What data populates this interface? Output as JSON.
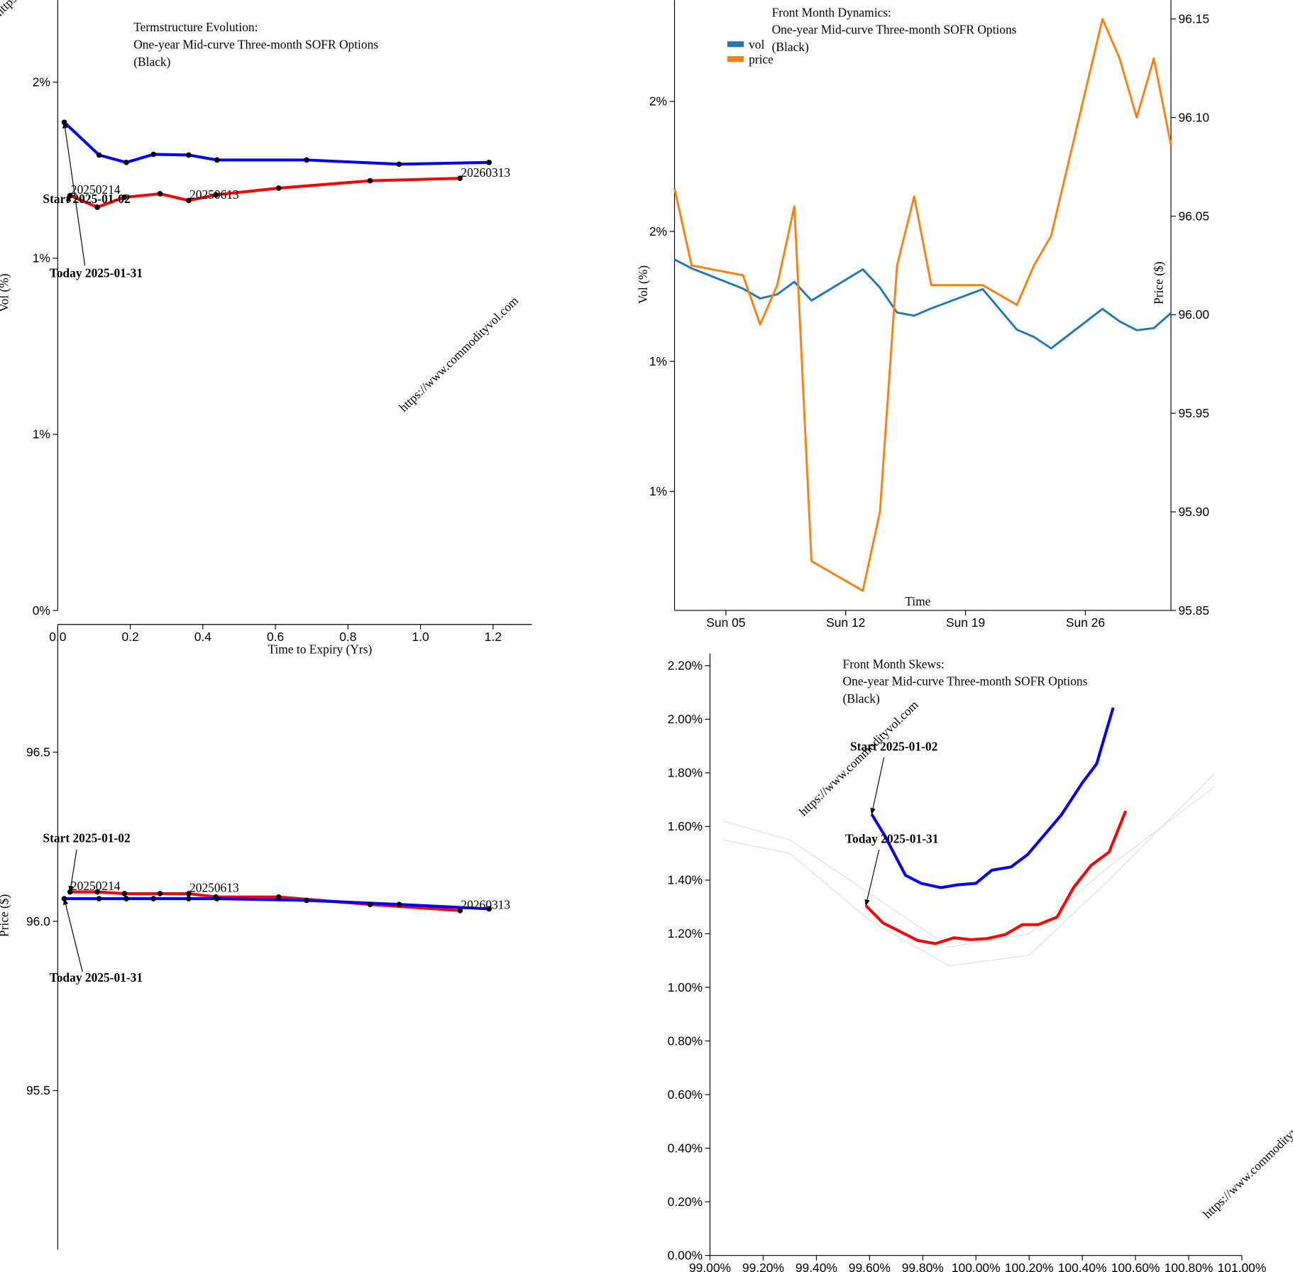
{
  "watermark": "https://www.commodityvol.com",
  "chart_data": [
    {
      "type": "line",
      "title": [
        "Termstructure Evolution:",
        "One-year Mid-curve Three-month SOFR Options",
        "(Black)"
      ],
      "x_label": "Time to Expiry (Yrs)",
      "y_label": "Vol (%)",
      "xlim": [
        0,
        1.307
      ],
      "ylim": [
        0,
        1.733
      ],
      "xticks": [
        {
          "value": 0,
          "label": "0.0"
        },
        0.2,
        0.4,
        0.6,
        0.8,
        {
          "value": 1,
          "label": "1.0"
        },
        1.2
      ],
      "yticks": [
        {
          "value": 0,
          "label": "0%"
        },
        {
          "value": 0.5,
          "label": "1%"
        },
        {
          "value": 1,
          "label": "1%"
        },
        {
          "value": 1.5,
          "label": "2%"
        }
      ],
      "markers": true,
      "annotations": [
        "Start 2025-01-02",
        "Today 2025-01-31"
      ],
      "series": [
        {
          "color": "#ff0000",
          "x": [
            0.034,
            0.109,
            0.184,
            0.282,
            0.361,
            0.436,
            0.609,
            0.861,
            1.109
          ],
          "values": [
            1.178,
            1.145,
            1.173,
            1.183,
            1.164,
            1.18,
            1.199,
            1.22,
            1.227
          ],
          "point_labels": [
            "20250214",
            null,
            null,
            null,
            "20250613",
            null,
            null,
            null,
            "20260313"
          ]
        },
        {
          "color": "#0000ff",
          "x": [
            0.018,
            0.114,
            0.189,
            0.264,
            0.361,
            0.439,
            0.686,
            0.941,
            1.189
          ],
          "values": [
            1.386,
            1.293,
            1.272,
            1.295,
            1.293,
            1.279,
            1.279,
            1.267,
            1.272
          ]
        }
      ]
    },
    {
      "type": "line",
      "y_label": "Price ($)",
      "xlim": [
        0,
        1.307
      ],
      "ylim": [
        95.03,
        96.87
      ],
      "yticks": [
        95.5,
        {
          "value": 96,
          "label": "96.0"
        },
        96.5
      ],
      "markers": true,
      "annotations": [
        "Start 2025-01-02",
        "Today 2025-01-31"
      ],
      "series": [
        {
          "color": "#ff0000",
          "x": [
            0.034,
            0.109,
            0.184,
            0.282,
            0.361,
            0.436,
            0.609,
            0.861,
            1.109
          ],
          "values": [
            96.087,
            96.087,
            96.082,
            96.082,
            96.082,
            96.072,
            96.072,
            96.05,
            96.032
          ],
          "point_labels": [
            "20250214",
            null,
            null,
            null,
            "20250613",
            null,
            null,
            null,
            "20260313"
          ]
        },
        {
          "color": "#0000ff",
          "x": [
            0.018,
            0.114,
            0.189,
            0.264,
            0.361,
            0.439,
            0.686,
            0.941,
            1.189
          ],
          "values": [
            96.067,
            96.067,
            96.067,
            96.067,
            96.067,
            96.067,
            96.062,
            96.05,
            96.037
          ]
        }
      ]
    },
    {
      "type": "line",
      "title": [
        "Front Month Dynamics:",
        "One-year Mid-curve Three-month SOFR Options",
        "(Black)"
      ],
      "x_label": "Time",
      "y_label": "Vol (%)",
      "y2_label": "Price ($)",
      "xlim": [
        2,
        31
      ],
      "ylim": [
        0.771,
        1.945
      ],
      "y2lim": [
        95.85,
        96.1596
      ],
      "xticks": [
        {
          "value": 5,
          "label": "Sun 05"
        },
        {
          "value": 12,
          "label": "Sun 12"
        },
        {
          "value": 19,
          "label": "Sun 19"
        },
        {
          "value": 26,
          "label": "Sun 26"
        }
      ],
      "yticks": [
        {
          "value": 1,
          "label": "1%"
        },
        {
          "value": 1.25,
          "label": "1%"
        },
        {
          "value": 1.5,
          "label": "2%"
        },
        {
          "value": 1.75,
          "label": "2%"
        }
      ],
      "y2ticks": [
        95.85,
        {
          "value": 95.9,
          "label": "95.90"
        },
        95.95,
        {
          "value": 96,
          "label": "96.00"
        },
        96.05,
        {
          "value": 96.1,
          "label": "96.10"
        },
        96.15
      ],
      "legend": "top-left",
      "series": [
        {
          "name": "vol",
          "color": "#1f77b4",
          "x": [
            2,
            3,
            6,
            7,
            8,
            9,
            10,
            13,
            14,
            15,
            16,
            17,
            20,
            22,
            23,
            24,
            27,
            28,
            29,
            30,
            31
          ],
          "values": [
            1.446,
            1.429,
            1.39,
            1.371,
            1.379,
            1.403,
            1.367,
            1.427,
            1.392,
            1.344,
            1.338,
            1.352,
            1.389,
            1.311,
            1.297,
            1.275,
            1.351,
            1.327,
            1.31,
            1.314,
            1.343
          ]
        },
        {
          "name": "price",
          "color": "#ff7f0e",
          "axis": "y2",
          "x": [
            2,
            3,
            6,
            7,
            8,
            9,
            10,
            13,
            14,
            15,
            16,
            17,
            20,
            22,
            23,
            24,
            27,
            28,
            29,
            30,
            31
          ],
          "values": [
            96.064,
            96.025,
            96.02,
            95.995,
            96.015,
            96.055,
            95.875,
            95.86,
            95.9,
            96.025,
            96.06,
            96.015,
            96.015,
            96.005,
            96.025,
            96.04,
            96.15,
            96.13,
            96.1,
            96.13,
            96.086
          ]
        }
      ]
    },
    {
      "type": "line",
      "title": [
        "Front Month Skews:",
        "One-year Mid-curve Three-month SOFR Options",
        "(Black)"
      ],
      "xlim": [
        99,
        101
      ],
      "ylim": [
        0,
        2.246
      ],
      "xticks": [
        {
          "value": 99,
          "label": "99.00%"
        },
        {
          "value": 99.2,
          "label": "99.20%"
        },
        {
          "value": 99.4,
          "label": "99.40%"
        },
        {
          "value": 99.6,
          "label": "99.60%"
        },
        {
          "value": 99.8,
          "label": "99.80%"
        },
        {
          "value": 100,
          "label": "100.00%"
        },
        {
          "value": 100.2,
          "label": "100.20%"
        },
        {
          "value": 100.4,
          "label": "100.40%"
        },
        {
          "value": 100.6,
          "label": "100.60%"
        },
        {
          "value": 100.8,
          "label": "100.80%"
        },
        {
          "value": 101,
          "label": "101.00%"
        }
      ],
      "yticks": [
        {
          "value": 0,
          "label": "0.00%"
        },
        {
          "value": 0.2,
          "label": "0.20%"
        },
        {
          "value": 0.4,
          "label": "0.40%"
        },
        {
          "value": 0.6,
          "label": "0.60%"
        },
        {
          "value": 0.8,
          "label": "0.80%"
        },
        {
          "value": 1,
          "label": "1.00%"
        },
        {
          "value": 1.2,
          "label": "1.20%"
        },
        {
          "value": 1.4,
          "label": "1.40%"
        },
        {
          "value": 1.6,
          "label": "1.60%"
        },
        {
          "value": 1.8,
          "label": "1.80%"
        },
        {
          "value": 2,
          "label": "2.00%"
        },
        {
          "value": 2.2,
          "label": "2.20%"
        }
      ],
      "annotations": [
        "Start 2025-01-02",
        "Today 2025-01-31"
      ],
      "series": [
        {
          "color": "#0000ff",
          "x": [
            99.608,
            99.657,
            99.735,
            99.794,
            99.868,
            99.927,
            100,
            100.06,
            100.132,
            100.194,
            100.321,
            100.398,
            100.454,
            100.516
          ],
          "values": [
            1.646,
            1.566,
            1.418,
            1.388,
            1.372,
            1.382,
            1.388,
            1.437,
            1.449,
            1.495,
            1.643,
            1.76,
            1.834,
            2.043
          ]
        },
        {
          "color": "#ff0000",
          "x": [
            99.586,
            99.651,
            99.719,
            99.781,
            99.847,
            99.918,
            99.98,
            100.042,
            100.11,
            100.175,
            100.234,
            100.305,
            100.367,
            100.433,
            100.501,
            100.563
          ],
          "values": [
            1.305,
            1.24,
            1.206,
            1.175,
            1.163,
            1.185,
            1.178,
            1.182,
            1.197,
            1.234,
            1.234,
            1.262,
            1.372,
            1.455,
            1.505,
            1.658
          ]
        },
        {
          "color": "#e3e3e3",
          "x": [
            99.05,
            99.3,
            99.6,
            99.9,
            100.2,
            100.5,
            100.9
          ],
          "values": [
            1.62,
            1.55,
            1.35,
            1.15,
            1.2,
            1.45,
            1.75
          ]
        },
        {
          "color": "#e3e3e3",
          "x": [
            99.05,
            99.3,
            99.6,
            99.9,
            100.2,
            100.5,
            100.9
          ],
          "values": [
            1.55,
            1.5,
            1.25,
            1.08,
            1.12,
            1.4,
            1.8
          ]
        }
      ]
    }
  ]
}
